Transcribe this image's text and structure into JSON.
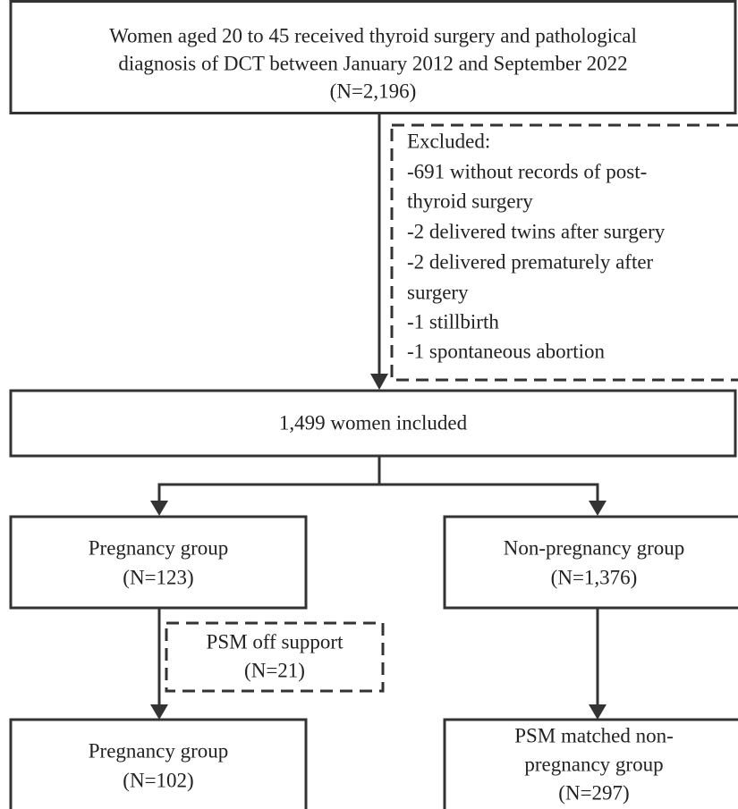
{
  "nodes": [
    {
      "lines": [
        "Women aged 20 to 45 received thyroid surgery and pathological",
        "diagnosis of DCT between January 2012 and September 2022",
        "(N=2,196)"
      ]
    },
    {
      "lines": [
        "Excluded:",
        "-691 without records of post-",
        "thyroid surgery",
        "-2 delivered twins after surgery",
        "-2 delivered prematurely after",
        "surgery",
        "-1 stillbirth",
        "-1 spontaneous abortion"
      ]
    },
    {
      "lines": [
        "1,499  women included"
      ]
    },
    {
      "lines": [
        "Pregnancy group",
        "(N=123)"
      ]
    },
    {
      "lines": [
        "Non-pregnancy group",
        "(N=1,376)"
      ]
    },
    {
      "lines": [
        "PSM off support",
        "(N=21)"
      ]
    },
    {
      "lines": [
        "Pregnancy group",
        "(N=102)"
      ]
    },
    {
      "lines": [
        "PSM matched non-",
        "pregnancy group",
        "(N=297)"
      ]
    }
  ]
}
